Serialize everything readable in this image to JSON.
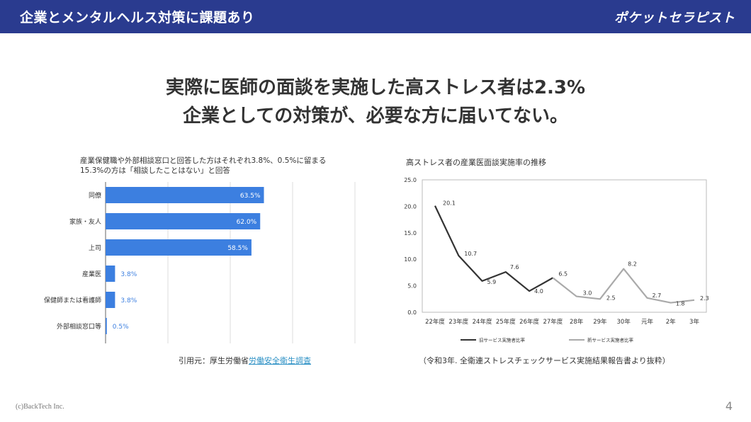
{
  "header": {
    "title": "企業とメンタルヘルス対策に課題あり",
    "brand": "ポケットセラピスト"
  },
  "headline": {
    "line1": "実際に医師の面談を実施した高ストレス者は2.3%",
    "line2": "企業としての対策が、必要な方に届いてない。"
  },
  "left_chart": {
    "caption_line1": "産業保健職や外部相談窓口と回答した方はそれぞれ3.8%、0.5%に留まる",
    "caption_line2": "15.3%の方は「相談したことはない」と回答",
    "source_prefix": "引用元：厚生労働省",
    "source_link": "労働安全衛生調査"
  },
  "right_chart": {
    "caption": "高ストレス者の産業医面談実施率の推移",
    "source": "（令和3年. 全衛連ストレスチェックサービス実施結果報告書より抜粋）"
  },
  "footer": {
    "copyright": "(c)BackTech Inc.",
    "page": "4"
  },
  "colors": {
    "header_bg": "#2a3b8f",
    "bar": "#3c7fe0",
    "old_line": "#333333",
    "new_line": "#aaaaaa"
  },
  "chart_data": [
    {
      "type": "bar",
      "orientation": "horizontal",
      "categories": [
        "同僚",
        "家族・友人",
        "上司",
        "産業医",
        "保健師または看護師",
        "外部相談窓口等"
      ],
      "values": [
        63.5,
        62.0,
        58.5,
        3.8,
        3.8,
        0.5
      ],
      "labels": [
        "63.5%",
        "62.0%",
        "58.5%",
        "3.8%",
        "3.8%",
        "0.5%"
      ],
      "xlim": [
        0,
        100
      ],
      "grid": true
    },
    {
      "type": "line",
      "x": [
        "22年度",
        "23年度",
        "24年度",
        "25年度",
        "26年度",
        "27年度",
        "28年",
        "29年",
        "30年",
        "元年",
        "2年",
        "3年"
      ],
      "ylim": [
        0,
        25
      ],
      "yticks": [
        "0.0",
        "5.0",
        "10.0",
        "15.0",
        "20.0",
        "25.0"
      ],
      "series": [
        {
          "name": "旧サービス実施者比率",
          "values": [
            20.1,
            10.7,
            5.9,
            7.6,
            4.0,
            6.5,
            null,
            null,
            null,
            null,
            null,
            null
          ],
          "labels": [
            "20.1",
            "10.7",
            "5.9",
            "7.6",
            "4.0",
            "6.5"
          ]
        },
        {
          "name": "新サービス実施者比率",
          "values": [
            null,
            null,
            null,
            null,
            null,
            6.5,
            3.0,
            2.5,
            8.2,
            2.7,
            1.8,
            2.3
          ],
          "labels": [
            "3.0",
            "2.5",
            "8.2",
            "2.7",
            "1.8",
            "2.3"
          ]
        }
      ],
      "legend": "bottom",
      "grid": false
    }
  ]
}
